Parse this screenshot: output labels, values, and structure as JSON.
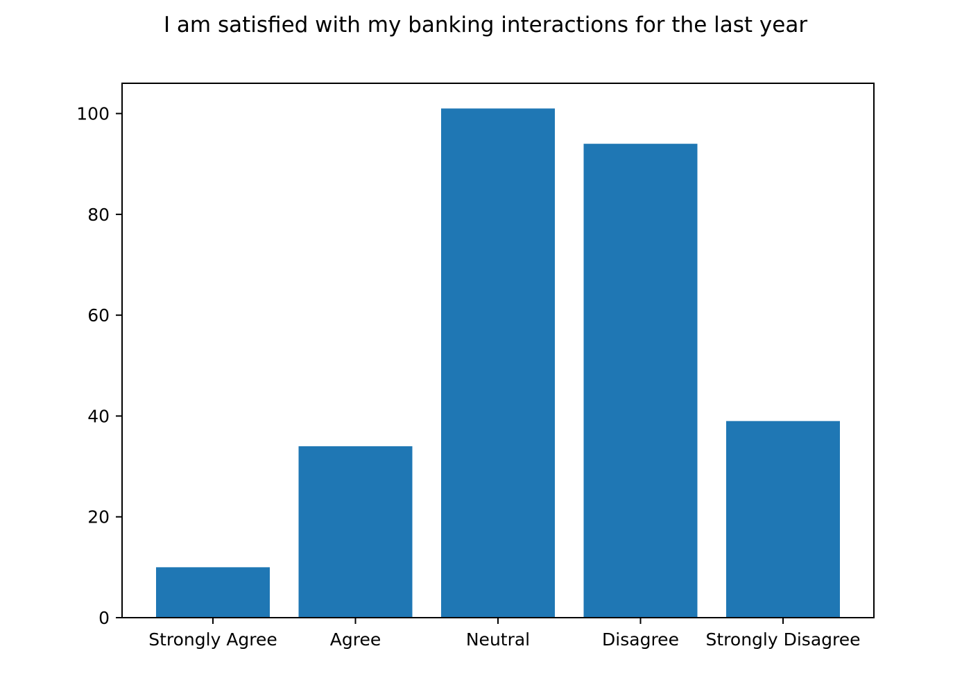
{
  "chart_data": {
    "type": "bar",
    "title": "I am satisfied with my banking interactions for the last year",
    "xlabel": "",
    "ylabel": "",
    "categories": [
      "Strongly Agree",
      "Agree",
      "Neutral",
      "Disagree",
      "Strongly Disagree"
    ],
    "values": [
      10,
      34,
      101,
      94,
      39
    ],
    "ylim": [
      0,
      106
    ],
    "yticks": [
      0,
      20,
      40,
      60,
      80,
      100
    ],
    "grid": false,
    "legend": "none",
    "bar_color": "#1f77b4"
  }
}
